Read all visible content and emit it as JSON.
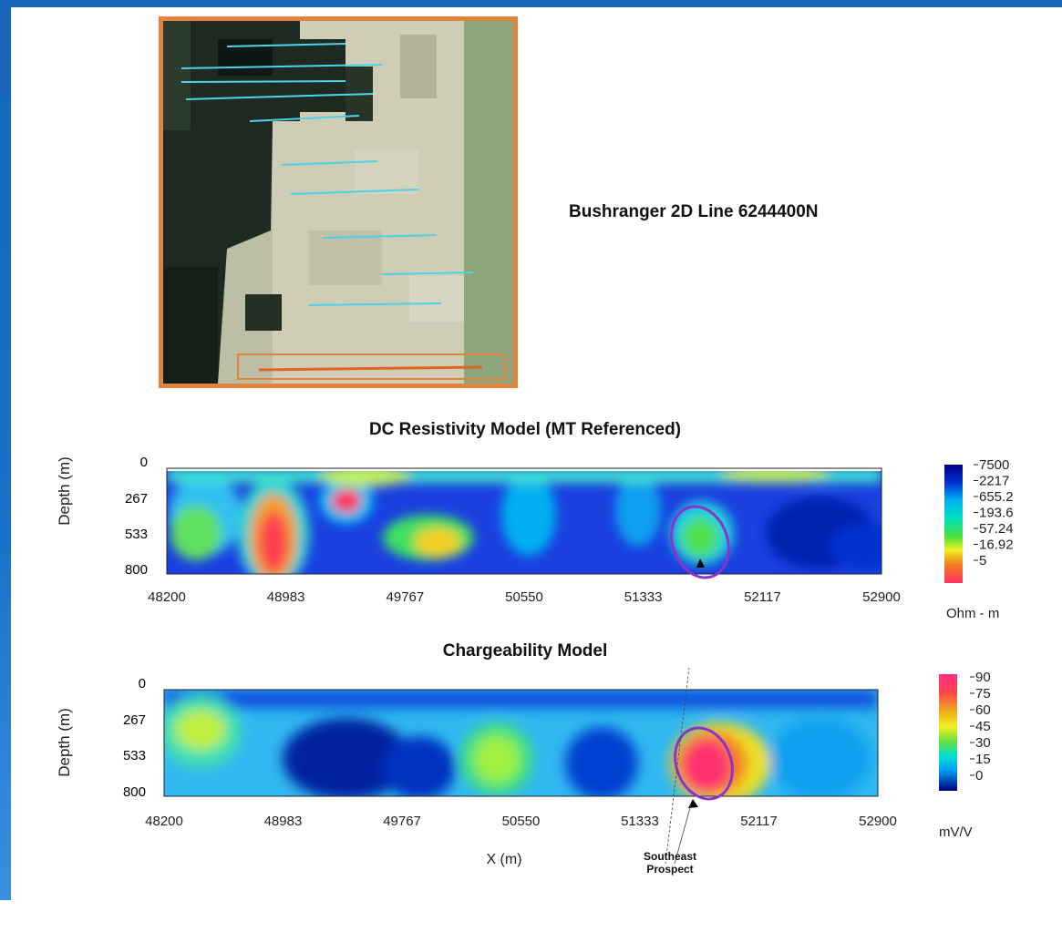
{
  "map": {
    "title": "Bushranger 2D Line 6244400N"
  },
  "colors": {
    "accent_blue": "#1565b8",
    "map_border": "#e3833d",
    "prospect_ellipse": "#8a35c8",
    "survey_lines": "#4fd2e6",
    "highlight_line": "#e0661f"
  },
  "chart_data": [
    {
      "type": "heatmap",
      "title": "DC Resistivity Model (MT Referenced)",
      "xlabel": "",
      "ylabel": "Depth (m)",
      "x_ticks": [
        "48200",
        "48983",
        "49767",
        "50550",
        "51333",
        "52117",
        "52900"
      ],
      "y_ticks": [
        "0",
        "267",
        "533",
        "800"
      ],
      "xlim": [
        48200,
        52900
      ],
      "ylim": [
        0,
        800
      ],
      "colorbar": {
        "labels": [
          "7500",
          "2217",
          "655.2",
          "193.6",
          "57.24",
          "16.92",
          "5"
        ],
        "unit": "Ohm - m"
      },
      "annotations": [
        {
          "shape": "ellipse",
          "x": 51750,
          "y": 550
        }
      ]
    },
    {
      "type": "heatmap",
      "title": "Chargeability Model",
      "xlabel": "X (m)",
      "ylabel": "Depth (m)",
      "x_ticks": [
        "48200",
        "48983",
        "49767",
        "50550",
        "51333",
        "52117",
        "52900"
      ],
      "y_ticks": [
        "0",
        "267",
        "533",
        "800"
      ],
      "xlim": [
        48200,
        52900
      ],
      "ylim": [
        0,
        800
      ],
      "colorbar": {
        "labels": [
          "90",
          "75",
          "60",
          "45",
          "30",
          "15",
          "0"
        ],
        "unit": "mV/V"
      },
      "annotations": [
        {
          "shape": "ellipse",
          "x": 51750,
          "y": 580,
          "label": "Southeast Prospect"
        }
      ]
    }
  ]
}
